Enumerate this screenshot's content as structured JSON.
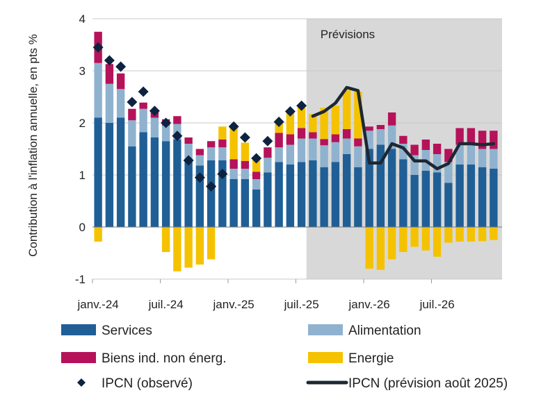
{
  "chart_data": {
    "type": "bar",
    "stacked": true,
    "ylabel": "Contribution à l'inflation annuelle, en pts %",
    "ylim": [
      -1,
      4
    ],
    "yticks": [
      "4",
      "3",
      "2",
      "1",
      "0",
      "-1"
    ],
    "xtick_labels": [
      {
        "index": 0,
        "label": "janv.-24"
      },
      {
        "index": 6,
        "label": "juil.-24"
      },
      {
        "index": 12,
        "label": "janv.-25"
      },
      {
        "index": 18,
        "label": "juil.-25"
      },
      {
        "index": 24,
        "label": "janv.-26"
      },
      {
        "index": 30,
        "label": "juil.-26"
      }
    ],
    "forecast_label": "Prévisions",
    "forecast_start_index": 19,
    "categories": [
      "2024-01",
      "2024-02",
      "2024-03",
      "2024-04",
      "2024-05",
      "2024-06",
      "2024-07",
      "2024-08",
      "2024-09",
      "2024-10",
      "2024-11",
      "2024-12",
      "2025-01",
      "2025-02",
      "2025-03",
      "2025-04",
      "2025-05",
      "2025-06",
      "2025-07",
      "2025-08",
      "2025-09",
      "2025-10",
      "2025-11",
      "2025-12",
      "2026-01",
      "2026-02",
      "2026-03",
      "2026-04",
      "2026-05",
      "2026-06",
      "2026-07",
      "2026-08",
      "2026-09",
      "2026-10",
      "2026-11",
      "2026-12"
    ],
    "series": [
      {
        "name": "Services",
        "color": "#1f5f96",
        "values": [
          2.1,
          2.0,
          2.1,
          1.55,
          1.82,
          1.72,
          1.65,
          1.68,
          1.3,
          1.18,
          1.28,
          1.28,
          0.92,
          0.92,
          0.72,
          1.05,
          1.25,
          1.2,
          1.25,
          1.28,
          1.15,
          1.25,
          1.4,
          1.15,
          1.5,
          1.58,
          1.5,
          1.3,
          1.0,
          1.08,
          1.05,
          0.85,
          1.2,
          1.2,
          1.15,
          1.12
        ]
      },
      {
        "name": "Alimentation",
        "color": "#8fb2cf",
        "values": [
          1.05,
          0.75,
          0.55,
          0.5,
          0.45,
          0.38,
          0.3,
          0.3,
          0.3,
          0.2,
          0.25,
          0.25,
          0.2,
          0.2,
          0.2,
          0.28,
          0.28,
          0.38,
          0.45,
          0.42,
          0.42,
          0.38,
          0.3,
          0.4,
          0.35,
          0.3,
          0.45,
          0.3,
          0.38,
          0.4,
          0.35,
          0.4,
          0.38,
          0.38,
          0.35,
          0.38
        ]
      },
      {
        "name": "Biens ind. non énerg.",
        "color": "#b5125a",
        "values": [
          0.6,
          0.38,
          0.3,
          0.22,
          0.12,
          0.12,
          0.12,
          0.15,
          0.12,
          0.12,
          0.12,
          0.15,
          0.18,
          0.15,
          0.14,
          0.2,
          0.28,
          0.2,
          0.2,
          0.12,
          0.12,
          0.15,
          0.18,
          0.15,
          0.08,
          0.08,
          0.25,
          0.15,
          0.2,
          0.2,
          0.2,
          0.25,
          0.32,
          0.32,
          0.35,
          0.35
        ]
      },
      {
        "name": "Energie",
        "color": "#f5c200",
        "values": [
          -0.28,
          0,
          0,
          0,
          0,
          0,
          -0.48,
          -0.85,
          -0.78,
          -0.72,
          -0.62,
          0.25,
          0.62,
          0.35,
          0.25,
          0,
          0.2,
          0.45,
          0.45,
          0.35,
          0.6,
          0.55,
          0.75,
          0.9,
          -0.8,
          -0.82,
          -0.62,
          -0.48,
          -0.38,
          -0.45,
          -0.57,
          -0.3,
          -0.28,
          -0.28,
          -0.27,
          -0.25
        ]
      },
      {
        "name": "IPCN (observé)",
        "color": "#0d2340",
        "kind": "scatter",
        "values": [
          3.45,
          3.2,
          3.08,
          2.4,
          2.6,
          2.23,
          2.0,
          1.75,
          1.28,
          0.95,
          0.78,
          1.02,
          1.93,
          1.72,
          1.32,
          1.65,
          2.02,
          2.22,
          2.33,
          null,
          null,
          null,
          null,
          null,
          null,
          null,
          null,
          null,
          null,
          null,
          null,
          null,
          null,
          null,
          null,
          null
        ]
      },
      {
        "name": "IPCN (prévision août 2025)",
        "color": "#1c2833",
        "kind": "line",
        "values": [
          null,
          null,
          null,
          null,
          null,
          null,
          null,
          null,
          null,
          null,
          null,
          null,
          null,
          null,
          null,
          null,
          null,
          null,
          null,
          2.13,
          2.22,
          2.38,
          2.68,
          2.62,
          1.23,
          1.23,
          1.6,
          1.52,
          1.27,
          1.27,
          1.12,
          1.22,
          1.6,
          1.6,
          1.58,
          1.6
        ]
      }
    ]
  }
}
